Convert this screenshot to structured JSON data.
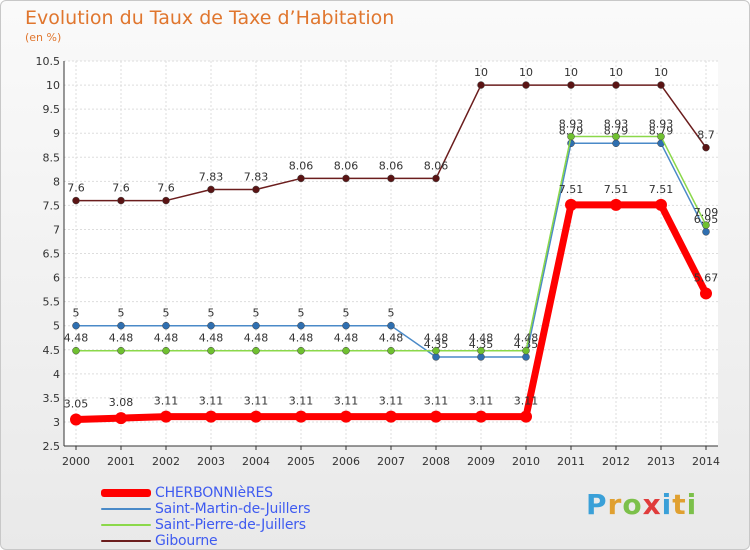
{
  "title": "Evolution du Taux de Taxe d’Habitation",
  "unit_label": "(en %)",
  "logo": {
    "text": "Proxiti",
    "letters": [
      {
        "ch": "P",
        "color": "#3aa0d8"
      },
      {
        "ch": "r",
        "color": "#e0a030"
      },
      {
        "ch": "o",
        "color": "#7cc04a"
      },
      {
        "ch": "x",
        "color": "#e03c3c"
      },
      {
        "ch": "i",
        "color": "#3aa0d8"
      },
      {
        "ch": "t",
        "color": "#e0a030"
      },
      {
        "ch": "i",
        "color": "#7cc04a"
      }
    ]
  },
  "chart_data": {
    "type": "line",
    "title": "Evolution du Taux de Taxe d’Habitation",
    "ylabel": "(en %)",
    "xlabel": "",
    "x": [
      2000,
      2001,
      2002,
      2003,
      2004,
      2005,
      2006,
      2007,
      2008,
      2009,
      2010,
      2011,
      2012,
      2013,
      2014
    ],
    "ylim": [
      2.5,
      10.5
    ],
    "yticks": [
      2.5,
      3,
      3.5,
      4,
      4.5,
      5,
      5.5,
      6,
      6.5,
      7,
      7.5,
      8,
      8.5,
      9,
      9.5,
      10,
      10.5
    ],
    "grid": true,
    "legend_position": "bottom-left",
    "series": [
      {
        "name": "Gibourne",
        "color": "#6b1d1d",
        "width": 1.5,
        "values": [
          7.6,
          7.6,
          7.6,
          7.83,
          7.83,
          8.06,
          8.06,
          8.06,
          8.06,
          10,
          10,
          10,
          10,
          10,
          8.7
        ],
        "labels": [
          "7.6",
          "7.6",
          "7.6",
          "7.83",
          "7.83",
          "8.06",
          "8.06",
          "8.06",
          "8.06",
          "10",
          "10",
          "10",
          "10",
          "10",
          "8.7"
        ]
      },
      {
        "name": "Saint-Martin-de-Juillers",
        "color": "#4a8ac8",
        "width": 1.5,
        "values": [
          5,
          5,
          5,
          5,
          5,
          5,
          5,
          5,
          4.35,
          4.35,
          4.35,
          8.79,
          8.79,
          8.79,
          6.95
        ],
        "labels": [
          "5",
          "5",
          "5",
          "5",
          "5",
          "5",
          "5",
          "5",
          "4.35",
          "4.35",
          "4.35",
          "8.79",
          "8.79",
          "8.79",
          "6.95"
        ]
      },
      {
        "name": "Saint-Pierre-de-Juillers",
        "color": "#8bd84a",
        "width": 1.5,
        "values": [
          4.48,
          4.48,
          4.48,
          4.48,
          4.48,
          4.48,
          4.48,
          4.48,
          4.48,
          4.48,
          4.48,
          8.93,
          8.93,
          8.93,
          7.09
        ],
        "labels": [
          "4.48",
          "4.48",
          "4.48",
          "4.48",
          "4.48",
          "4.48",
          "4.48",
          "4.48",
          "4.48",
          "4.48",
          "4.48",
          "8.93",
          "8.93",
          "8.93",
          "7.09"
        ]
      },
      {
        "name": "CHERBONNIèRES",
        "color": "#ff0000",
        "width": 7,
        "values": [
          3.05,
          3.08,
          3.11,
          3.11,
          3.11,
          3.11,
          3.11,
          3.11,
          3.11,
          3.11,
          3.11,
          7.51,
          7.51,
          7.51,
          5.67
        ],
        "labels": [
          "3.05",
          "3.08",
          "3.11",
          "3.11",
          "3.11",
          "3.11",
          "3.11",
          "3.11",
          "3.11",
          "3.11",
          "3.11",
          "7.51",
          "7.51",
          "7.51",
          "5.67"
        ]
      }
    ],
    "legend_order": [
      "CHERBONNIèRES",
      "Saint-Martin-de-Juillers",
      "Saint-Pierre-de-Juillers",
      "Gibourne"
    ]
  }
}
